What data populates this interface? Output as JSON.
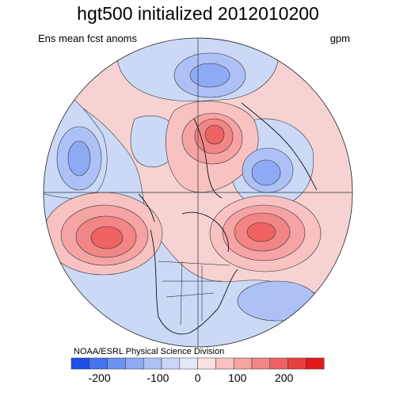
{
  "figure": {
    "title": "hgt500 initialized 2012010200",
    "subtitle": "Ens mean fcst anoms",
    "units": "gpm",
    "credit": "NOAA/ESRL Physical Science Division"
  },
  "colorbar": {
    "tick_labels": [
      "-200",
      "-100",
      "0",
      "100",
      "200"
    ],
    "colors": [
      "#1f4fe8",
      "#4674f0",
      "#6b91f3",
      "#8eaaf5",
      "#aec1f7",
      "#c9d6f8",
      "#e2e8fa",
      "#fbe0e0",
      "#f8c2c2",
      "#f5a3a3",
      "#f28585",
      "#ef6363",
      "#ea3f3f",
      "#e31a1a"
    ]
  },
  "colors": {
    "negative_light": "#cbd9f7",
    "positive_light": "#f6cfcf",
    "coast": "#111111"
  }
}
